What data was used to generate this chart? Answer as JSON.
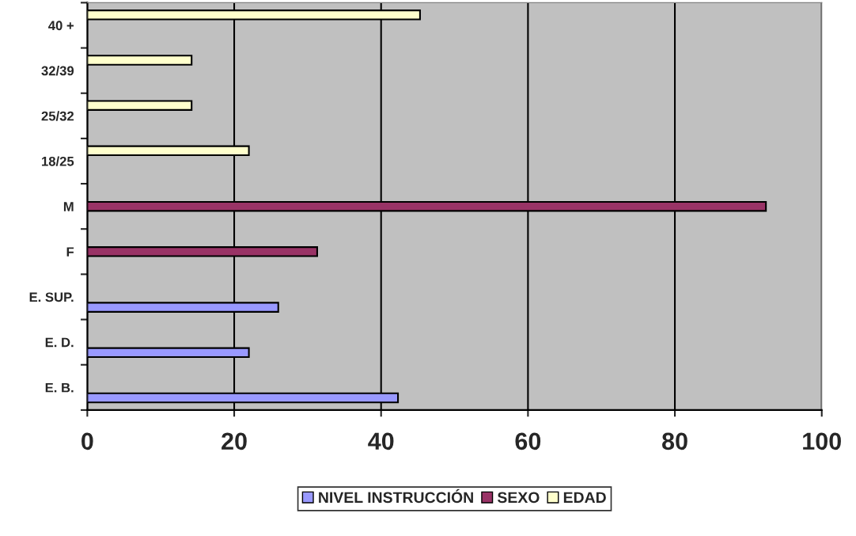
{
  "chart_data": {
    "type": "bar",
    "orientation": "horizontal",
    "categories": [
      "40 +",
      "32/39",
      "25/32",
      "18/25",
      "M",
      "F",
      "E. SUP.",
      "E. D.",
      "E. B."
    ],
    "series": [
      {
        "name": "NIVEL INSTRUCCIÓN",
        "color": "#9999ff",
        "values": [
          null,
          null,
          null,
          null,
          null,
          null,
          26,
          22,
          42.3
        ]
      },
      {
        "name": "SEXO",
        "color": "#993366",
        "values": [
          null,
          null,
          null,
          null,
          92.4,
          31.3,
          null,
          null,
          null
        ]
      },
      {
        "name": "EDAD",
        "color": "#ffffcc",
        "values": [
          45.3,
          14.2,
          14.2,
          22,
          null,
          null,
          null,
          null,
          null
        ]
      }
    ],
    "xlim": [
      0,
      100
    ],
    "xticks": [
      0,
      20,
      40,
      60,
      80,
      100
    ],
    "grid": "x",
    "legend": "bottom"
  }
}
